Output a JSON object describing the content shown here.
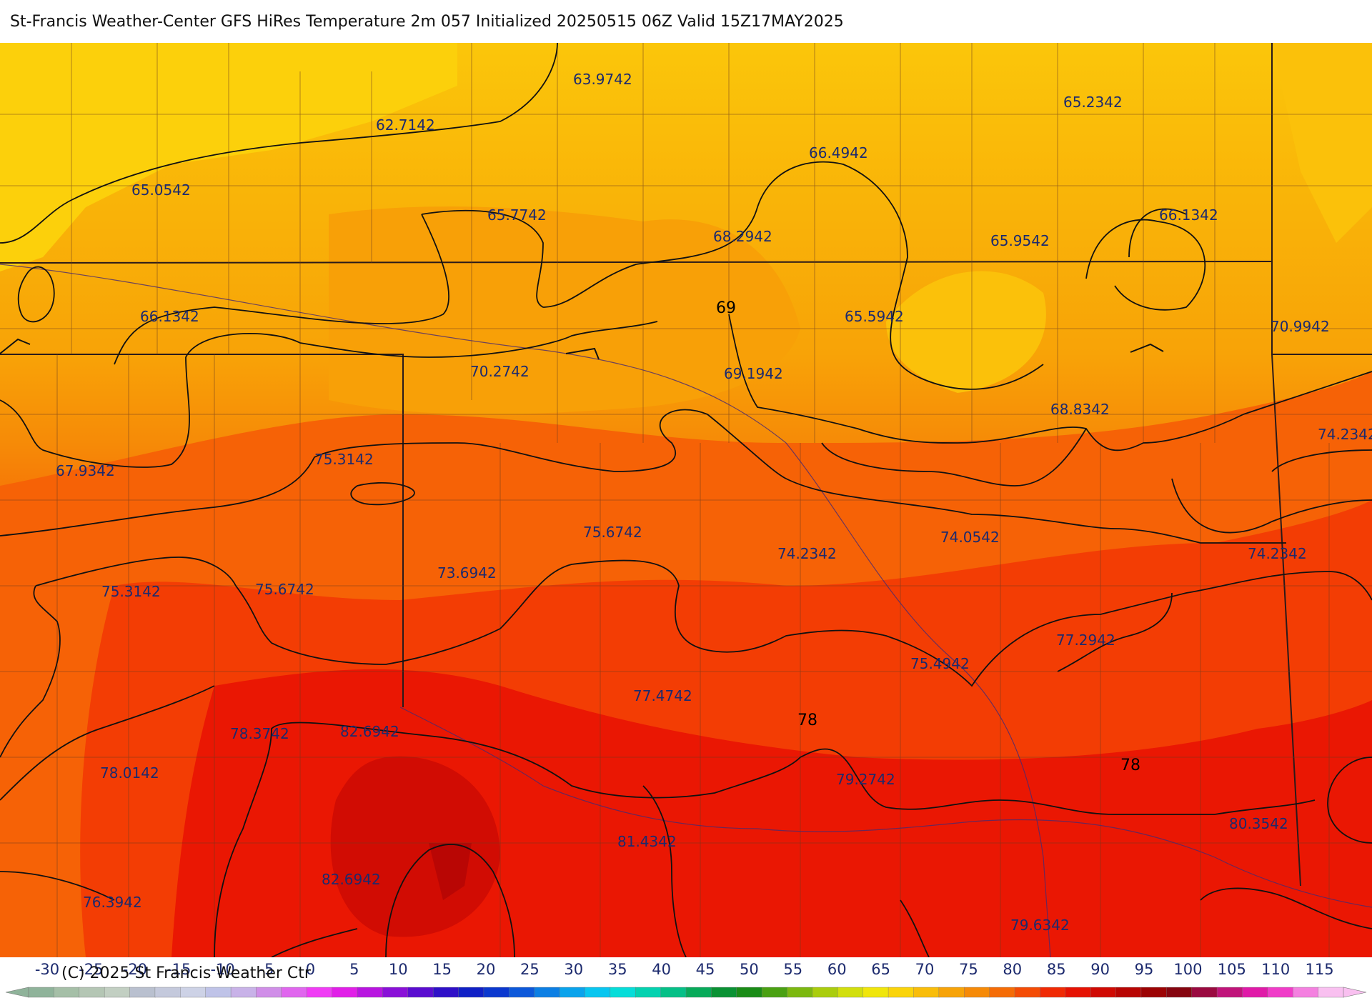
{
  "title": "St-Francis Weather-Center GFS HiRes Temperature 2m  057 Initialized 20250515 06Z Valid 15Z17MAY2025",
  "copyright": "(C) 2025 St Francis Weather Ctr",
  "point_labels": [
    {
      "text": "63.9742"
    },
    {
      "text": "62.7142"
    },
    {
      "text": "65.2342"
    },
    {
      "text": "65.0542"
    },
    {
      "text": "66.4942"
    },
    {
      "text": "65.7742"
    },
    {
      "text": "68.2942"
    },
    {
      "text": "66.1342"
    },
    {
      "text": "65.9542"
    },
    {
      "text": "66.1342"
    },
    {
      "text": "65.5942"
    },
    {
      "text": "70.9942"
    },
    {
      "text": "70.2742"
    },
    {
      "text": "69.1942"
    },
    {
      "text": "68.8342"
    },
    {
      "text": "74.2342"
    },
    {
      "text": "67.9342"
    },
    {
      "text": "75.3142"
    },
    {
      "text": "75.6742"
    },
    {
      "text": "74.2342"
    },
    {
      "text": "74.0542"
    },
    {
      "text": "74.2342"
    },
    {
      "text": "73.6942"
    },
    {
      "text": "75.3142"
    },
    {
      "text": "75.6742"
    },
    {
      "text": "77.2942"
    },
    {
      "text": "75.4942"
    },
    {
      "text": "77.4742"
    },
    {
      "text": "78.3742"
    },
    {
      "text": "82.6942"
    },
    {
      "text": "78.0142"
    },
    {
      "text": "79.2742"
    },
    {
      "text": "80.3542"
    },
    {
      "text": "81.4342"
    },
    {
      "text": "82.6942"
    },
    {
      "text": "76.3942"
    },
    {
      "text": "79.6342"
    }
  ],
  "contour_labels": [
    {
      "text": "69"
    },
    {
      "text": "78"
    },
    {
      "text": "78"
    }
  ],
  "colorbar": {
    "ticks": [
      "-30",
      "-25",
      "-20",
      "-15",
      "-10",
      "-5",
      "0",
      "5",
      "10",
      "15",
      "20",
      "25",
      "30",
      "35",
      "40",
      "45",
      "50",
      "55",
      "60",
      "65",
      "70",
      "75",
      "80",
      "85",
      "90",
      "95",
      "100",
      "105",
      "110",
      "115"
    ],
    "colors": [
      "#8fb39a",
      "#a5bfa7",
      "#b4c6b4",
      "#c2cfc2",
      "#b9c0cf",
      "#c4c9dc",
      "#cdd2e6",
      "#bfc3e8",
      "#c8b2e8",
      "#d08ee8",
      "#e066ee",
      "#f03cf5",
      "#e11fe8",
      "#b815e0",
      "#8a10d8",
      "#5a0cd0",
      "#2f10c8",
      "#1020c6",
      "#0b38cf",
      "#0c58da",
      "#0c7fe4",
      "#0aa3ec",
      "#08c6f0",
      "#06ddd9",
      "#04d2b0",
      "#05c087",
      "#07aa5a",
      "#0a9234",
      "#1a8c17",
      "#4aa112",
      "#7cb80f",
      "#aacd0d",
      "#d2df0c",
      "#f0e60b",
      "#fad40a",
      "#f9bd09",
      "#f7a308",
      "#f68a07",
      "#f56c06",
      "#f44c05",
      "#f02a04",
      "#e61203",
      "#d00a03",
      "#b80503",
      "#9c0304",
      "#860510",
      "#9a0a40",
      "#c0147a",
      "#e01aa8",
      "#f03cc8",
      "#f480e0",
      "#f9c0f0"
    ],
    "units_shown_on_ticks": true
  }
}
